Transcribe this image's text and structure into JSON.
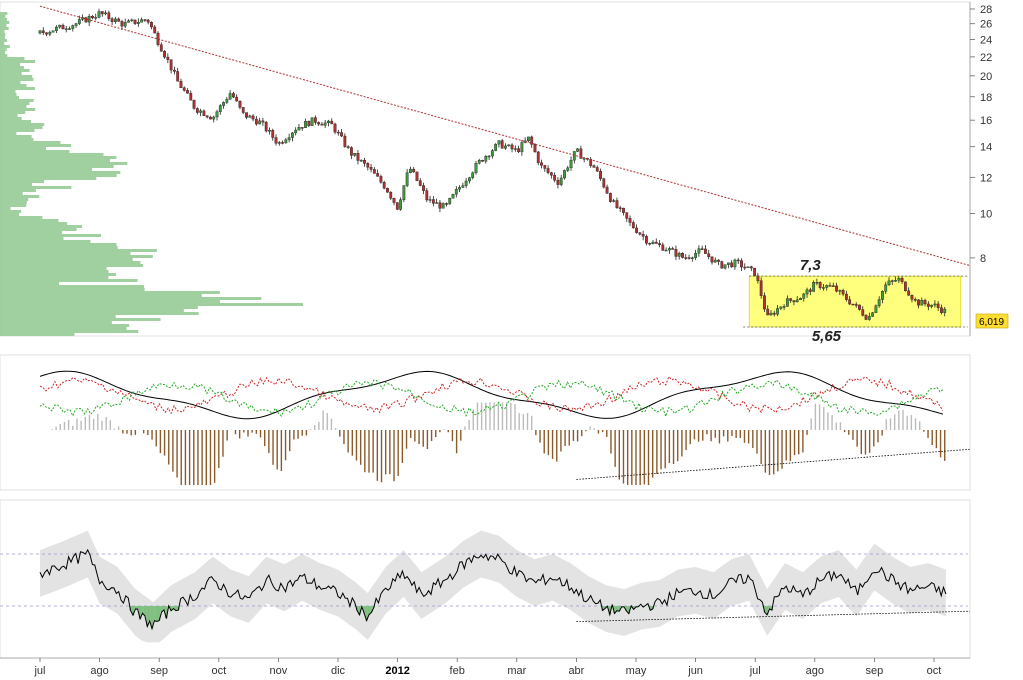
{
  "chart_data": [
    {
      "type": "candlestick",
      "title": "",
      "yscale": "log",
      "ylim": [
        5.4,
        29
      ],
      "yticks": [
        28,
        26,
        24,
        22,
        20,
        18,
        16,
        14,
        12,
        10,
        8
      ],
      "x_labels": [
        "jul",
        "ago",
        "sep",
        "oct",
        "nov",
        "dic",
        "2012",
        "feb",
        "mar",
        "abr",
        "may",
        "jun",
        "jul",
        "ago",
        "sep",
        "oct"
      ],
      "last_price": "6,019",
      "range_high_label": "7,3",
      "range_low_label": "5,65",
      "range_high": 7.3,
      "range_low": 5.65,
      "price_path": [
        {
          "t": 0.0,
          "p": 24.8
        },
        {
          "t": 0.6,
          "p": 26.0
        },
        {
          "t": 1.0,
          "p": 27.4
        },
        {
          "t": 1.4,
          "p": 25.9
        },
        {
          "t": 1.8,
          "p": 26.6
        },
        {
          "t": 2.0,
          "p": 23.5
        },
        {
          "t": 2.3,
          "p": 19.5
        },
        {
          "t": 2.6,
          "p": 17.0
        },
        {
          "t": 2.9,
          "p": 16.2
        },
        {
          "t": 3.2,
          "p": 18.4
        },
        {
          "t": 3.4,
          "p": 16.5
        },
        {
          "t": 3.7,
          "p": 15.8
        },
        {
          "t": 4.0,
          "p": 14.2
        },
        {
          "t": 4.3,
          "p": 15.4
        },
        {
          "t": 4.6,
          "p": 16.0
        },
        {
          "t": 4.9,
          "p": 15.6
        },
        {
          "t": 5.2,
          "p": 13.6
        },
        {
          "t": 5.5,
          "p": 12.6
        },
        {
          "t": 5.8,
          "p": 11.4
        },
        {
          "t": 6.0,
          "p": 10.3
        },
        {
          "t": 6.2,
          "p": 12.6
        },
        {
          "t": 6.5,
          "p": 10.7
        },
        {
          "t": 6.8,
          "p": 10.3
        },
        {
          "t": 7.1,
          "p": 11.7
        },
        {
          "t": 7.4,
          "p": 13.1
        },
        {
          "t": 7.7,
          "p": 14.2
        },
        {
          "t": 8.0,
          "p": 13.7
        },
        {
          "t": 8.2,
          "p": 14.6
        },
        {
          "t": 8.4,
          "p": 12.7
        },
        {
          "t": 8.7,
          "p": 11.7
        },
        {
          "t": 9.0,
          "p": 13.7
        },
        {
          "t": 9.3,
          "p": 12.6
        },
        {
          "t": 9.6,
          "p": 10.6
        },
        {
          "t": 9.9,
          "p": 9.5
        },
        {
          "t": 10.2,
          "p": 8.7
        },
        {
          "t": 10.5,
          "p": 8.4
        },
        {
          "t": 10.8,
          "p": 8.0
        },
        {
          "t": 11.1,
          "p": 8.3
        },
        {
          "t": 11.4,
          "p": 7.7
        },
        {
          "t": 11.7,
          "p": 7.8
        },
        {
          "t": 12.0,
          "p": 7.4
        },
        {
          "t": 12.2,
          "p": 5.9
        },
        {
          "t": 12.5,
          "p": 6.4
        },
        {
          "t": 12.8,
          "p": 6.6
        },
        {
          "t": 13.0,
          "p": 7.0
        },
        {
          "t": 13.3,
          "p": 6.9
        },
        {
          "t": 13.6,
          "p": 6.4
        },
        {
          "t": 13.9,
          "p": 5.9
        },
        {
          "t": 14.2,
          "p": 7.0
        },
        {
          "t": 14.4,
          "p": 7.2
        },
        {
          "t": 14.7,
          "p": 6.4
        },
        {
          "t": 15.0,
          "p": 6.3
        },
        {
          "t": 15.2,
          "p": 6.1
        }
      ],
      "trendline": [
        {
          "t": 0.0,
          "p": 28.4
        },
        {
          "t": 15.6,
          "p": 7.7
        }
      ],
      "volume_profile_note": "horizontal volume-at-price histogram on left"
    },
    {
      "type": "line",
      "title": "",
      "series": [
        {
          "color": "#000000"
        },
        {
          "color": "#cc2222"
        },
        {
          "color": "#22aa22"
        },
        {
          "color": "#8b5a2b"
        }
      ],
      "trendline": [
        {
          "t": 9.0,
          "v": -0.9
        },
        {
          "t": 15.6,
          "v": -0.35
        }
      ]
    },
    {
      "type": "line",
      "title": "",
      "ylim": [
        0,
        100
      ],
      "upper_level": 70,
      "lower_level": 30,
      "oscillator_path": [
        {
          "t": 0.0,
          "v": 55
        },
        {
          "t": 0.4,
          "v": 62
        },
        {
          "t": 0.8,
          "v": 70
        },
        {
          "t": 1.0,
          "v": 50
        },
        {
          "t": 1.3,
          "v": 42
        },
        {
          "t": 1.6,
          "v": 25
        },
        {
          "t": 1.9,
          "v": 15
        },
        {
          "t": 2.2,
          "v": 28
        },
        {
          "t": 2.6,
          "v": 38
        },
        {
          "t": 2.9,
          "v": 50
        },
        {
          "t": 3.2,
          "v": 40
        },
        {
          "t": 3.5,
          "v": 35
        },
        {
          "t": 3.8,
          "v": 50
        },
        {
          "t": 4.1,
          "v": 44
        },
        {
          "t": 4.4,
          "v": 52
        },
        {
          "t": 4.7,
          "v": 45
        },
        {
          "t": 5.0,
          "v": 40
        },
        {
          "t": 5.3,
          "v": 30
        },
        {
          "t": 5.5,
          "v": 22
        },
        {
          "t": 5.8,
          "v": 42
        },
        {
          "t": 6.1,
          "v": 55
        },
        {
          "t": 6.4,
          "v": 38
        },
        {
          "t": 6.8,
          "v": 50
        },
        {
          "t": 7.1,
          "v": 62
        },
        {
          "t": 7.4,
          "v": 70
        },
        {
          "t": 7.7,
          "v": 66
        },
        {
          "t": 8.0,
          "v": 55
        },
        {
          "t": 8.3,
          "v": 48
        },
        {
          "t": 8.6,
          "v": 52
        },
        {
          "t": 8.9,
          "v": 45
        },
        {
          "t": 9.2,
          "v": 35
        },
        {
          "t": 9.5,
          "v": 28
        },
        {
          "t": 9.8,
          "v": 25
        },
        {
          "t": 10.1,
          "v": 30
        },
        {
          "t": 10.4,
          "v": 32
        },
        {
          "t": 10.7,
          "v": 40
        },
        {
          "t": 11.0,
          "v": 42
        },
        {
          "t": 11.3,
          "v": 38
        },
        {
          "t": 11.6,
          "v": 48
        },
        {
          "t": 11.9,
          "v": 52
        },
        {
          "t": 12.2,
          "v": 25
        },
        {
          "t": 12.5,
          "v": 45
        },
        {
          "t": 12.8,
          "v": 38
        },
        {
          "t": 13.1,
          "v": 50
        },
        {
          "t": 13.4,
          "v": 55
        },
        {
          "t": 13.7,
          "v": 40
        },
        {
          "t": 14.0,
          "v": 60
        },
        {
          "t": 14.3,
          "v": 50
        },
        {
          "t": 14.6,
          "v": 42
        },
        {
          "t": 14.9,
          "v": 45
        },
        {
          "t": 15.2,
          "v": 40
        }
      ],
      "trendline": [
        {
          "t": 9.0,
          "v": 18
        },
        {
          "t": 15.6,
          "v": 26
        }
      ]
    }
  ]
}
